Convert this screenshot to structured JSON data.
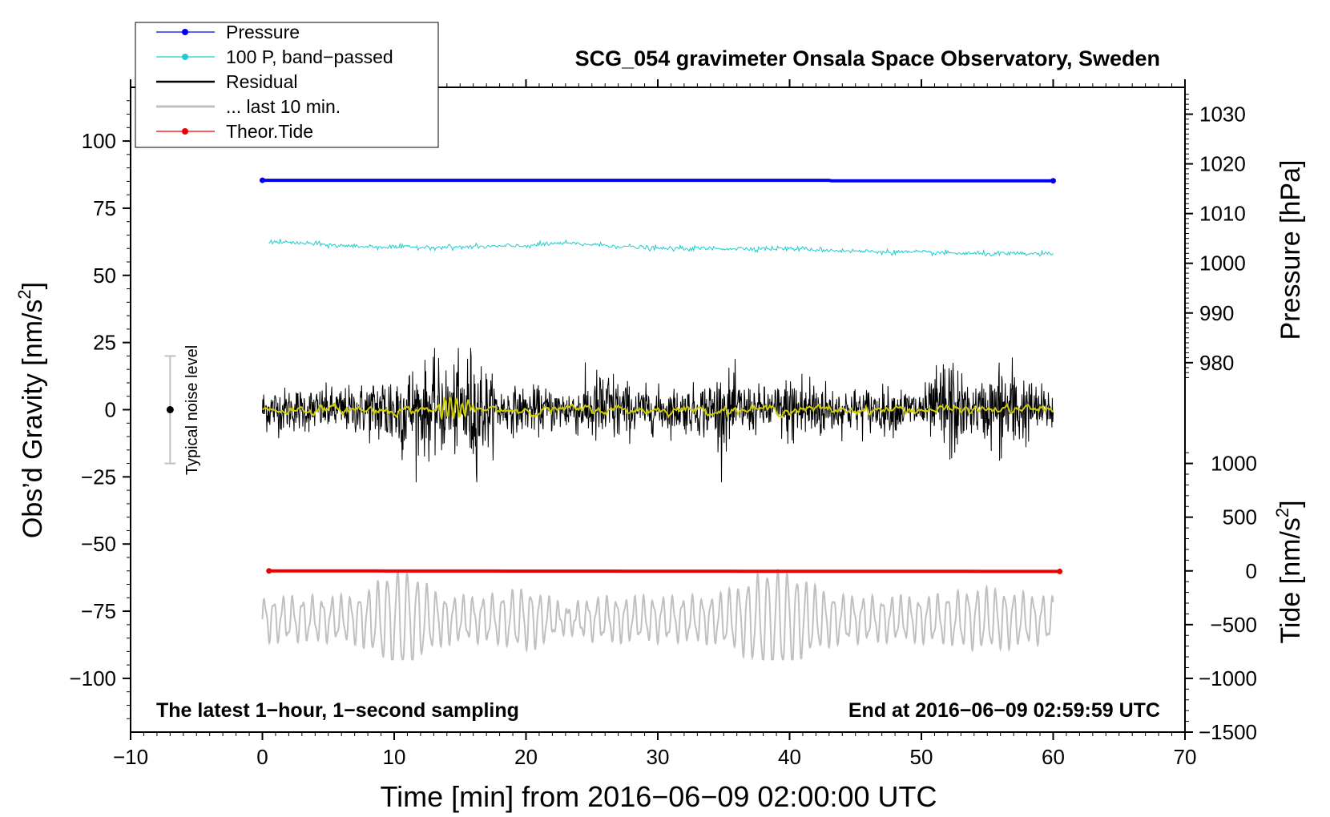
{
  "chart_data": {
    "type": "line",
    "title": "SCG_054 gravimeter Onsala Space Observatory, Sweden",
    "xlabel": "Time [min] from 2016−06−09 02:00:00 UTC",
    "ylabel_left_main": "Obs’d Gravity [nm/s",
    "ylabel_left_sup": "2",
    "ylabel_left_end": "]",
    "ylabel_right_pressure": "Pressure [hPa]",
    "ylabel_right_tide_main": "Tide [nm/s",
    "ylabel_right_tide_sup": "2",
    "ylabel_right_tide_end": "]",
    "bottom_left_note": "The latest 1−hour, 1−second sampling",
    "bottom_right_note": "End at 2016−06−09 02:59:59 UTC",
    "noise_label": "Typical noise level",
    "xlim": [
      -10,
      70
    ],
    "xticks": [
      -10,
      0,
      10,
      20,
      30,
      40,
      50,
      60,
      70
    ],
    "xtick_labels": [
      "−10",
      "0",
      "10",
      "20",
      "30",
      "40",
      "50",
      "60",
      "70"
    ],
    "ylim": [
      -120,
      120
    ],
    "yticks": [
      100,
      75,
      50,
      25,
      0,
      -25,
      -50,
      -75,
      -100
    ],
    "ytick_labels": [
      "100",
      "75",
      "50",
      "25",
      "0",
      "−25",
      "−50",
      "−75",
      "−100"
    ],
    "pressure_axis": {
      "ticks": [
        1030,
        1020,
        1010,
        1000,
        990,
        980
      ],
      "tick_labels": [
        "1030",
        "1020",
        "1010",
        "1000",
        "990",
        "980"
      ],
      "map_gravity_at_1030": 110,
      "gravity_per_hpa": 1.85
    },
    "tide_axis": {
      "ticks": [
        1000,
        500,
        0,
        -500,
        -1000,
        -1500
      ],
      "tick_labels": [
        "1000",
        "500",
        "0",
        "−500",
        "−1000",
        "−1500"
      ],
      "map_gravity_at_0": -60,
      "gravity_per_unit": 0.04
    },
    "noise_level": {
      "x": -7,
      "center": 0,
      "range": [
        -20,
        20
      ]
    },
    "legend": [
      {
        "label": "Pressure",
        "color": "#0000ee",
        "marker": true
      },
      {
        "label": "100 P, band−passed",
        "color": "#22cccc",
        "marker": true
      },
      {
        "label": "Residual",
        "color": "#000000",
        "marker": false
      },
      {
        "label": "... last 10 min.",
        "color": "#c0c0c0",
        "marker": false
      },
      {
        "label": "Theor.Tide",
        "color": "#ee0000",
        "marker": true
      }
    ],
    "series": [
      {
        "name": "Pressure",
        "color": "#0000ee",
        "axis": "pressure",
        "x": [
          0,
          43,
          43.2,
          60
        ],
        "values": [
          1016.7,
          1016.7,
          1016.6,
          1016.6
        ]
      },
      {
        "name": "100 P, band-passed",
        "color": "#22cccc",
        "axis": "gravity",
        "x": [
          0.5,
          3,
          6,
          10,
          15,
          20,
          22.5,
          25,
          30,
          35,
          40,
          45,
          50,
          55,
          60
        ],
        "values": [
          62.5,
          62,
          61,
          60.5,
          60.5,
          61,
          62,
          61.5,
          60,
          60,
          60,
          59,
          58.5,
          58,
          58
        ]
      },
      {
        "name": "Residual",
        "color": "#000000",
        "axis": "gravity",
        "x": [
          0,
          60
        ],
        "amplitude_min": [
          -12,
          -27
        ],
        "amplitude_max": [
          12,
          23
        ]
      },
      {
        "name": "Residual smoothed",
        "color": "#cccc00",
        "axis": "gravity",
        "x": [
          0,
          60
        ],
        "values": [
          0,
          0
        ]
      },
      {
        "name": "... last 10 min.",
        "color": "#c0c0c0",
        "axis": "gravity",
        "x": [
          0,
          60
        ],
        "values_center": -78,
        "values_min": -93,
        "values_max": -53
      },
      {
        "name": "Theor.Tide",
        "color": "#ee0000",
        "axis": "tide",
        "x": [
          0.5,
          60.5
        ],
        "values": [
          0,
          -5
        ]
      }
    ]
  }
}
